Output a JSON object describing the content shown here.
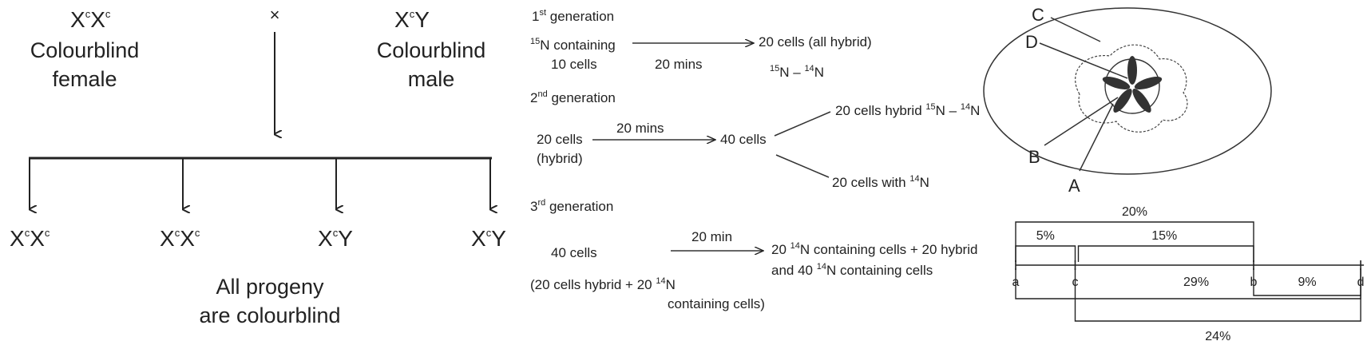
{
  "cross": {
    "female_genotype": {
      "base1": "X",
      "sup1": "c",
      "base2": "X",
      "sup2": "c"
    },
    "female_label": [
      "Colourblind",
      "female"
    ],
    "cross_symbol": "×",
    "male_genotype": {
      "base1": "X",
      "sup1": "c",
      "base2": "Y"
    },
    "male_label": [
      "Colourblind",
      "male"
    ],
    "progeny": [
      {
        "base1": "X",
        "sup1": "c",
        "base2": "X",
        "sup2": "c"
      },
      {
        "base1": "X",
        "sup1": "c",
        "base2": "X",
        "sup2": "c"
      },
      {
        "base1": "X",
        "sup1": "c",
        "base2": "Y",
        "sup2": ""
      },
      {
        "base1": "X",
        "sup1": "c",
        "base2": "Y",
        "sup2": ""
      }
    ],
    "conclusion": [
      "All progeny",
      "are colourblind"
    ]
  },
  "replication": {
    "gen1": {
      "num": "1",
      "sup": "st",
      "word": " generation"
    },
    "gen1_start_sup": "15",
    "gen1_start_text": "N containing",
    "gen1_start_cells": "10 cells",
    "gen1_time": "20 mins",
    "gen1_result": "20 cells (all hybrid)",
    "gen1_result_n": {
      "sup_a": "15",
      "a": "N – ",
      "sup_b": "14",
      "b": "N"
    },
    "gen2": {
      "num": "2",
      "sup": "nd",
      "word": " generation"
    },
    "gen2_start": [
      "20 cells",
      "(hybrid)"
    ],
    "gen2_time": "20 mins",
    "gen2_mid": "40 cells",
    "gen2_branch_a": {
      "text": "20 cells hybrid ",
      "sup_a": "15",
      "a": "N – ",
      "sup_b": "14",
      "b": "N"
    },
    "gen2_branch_b": {
      "text": "20 cells with ",
      "sup": "14",
      "end": "N"
    },
    "gen3": {
      "num": "3",
      "sup": "rd",
      "word": " generation"
    },
    "gen3_start": "40 cells",
    "gen3_time": "20 min",
    "gen3_result_l1": {
      "a": "20 ",
      "sup": "14",
      "b": "N containing cells + 20 hybrid"
    },
    "gen3_result_l2": {
      "a": "and 40 ",
      "sup": "14",
      "b": "N containing cells"
    },
    "gen3_note_l1": {
      "a": "(20 cells hybrid + 20 ",
      "sup": "14",
      "b": "N"
    },
    "gen3_note_l2": "containing cells)"
  },
  "structure_labels": [
    "C",
    "D",
    "B",
    "A"
  ],
  "gene_map": {
    "loci": [
      "a",
      "c",
      "b",
      "d"
    ],
    "positions": [
      0,
      5,
      20,
      29
    ],
    "distances": [
      {
        "label": "20%",
        "from": "a",
        "to": "b"
      },
      {
        "label": "5%",
        "from": "a",
        "to": "c"
      },
      {
        "label": "15%",
        "from": "c",
        "to": "b"
      },
      {
        "label": "29%",
        "from": "a",
        "to": "d"
      },
      {
        "label": "9%",
        "from": "b",
        "to": "d"
      },
      {
        "label": "24%",
        "from": "c",
        "to": "d"
      }
    ]
  }
}
